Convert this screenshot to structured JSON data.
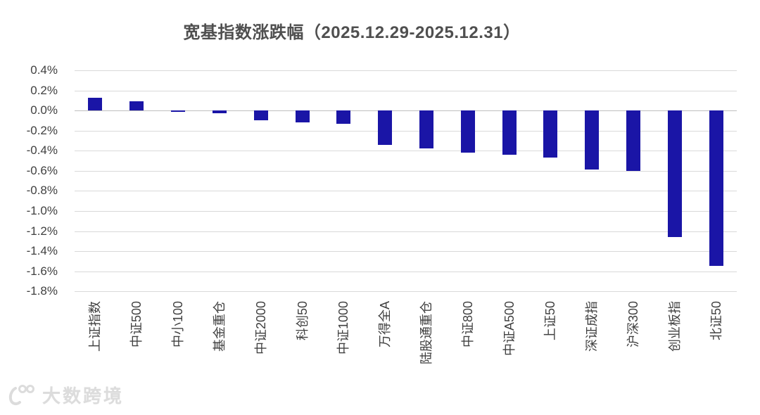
{
  "watermark": {
    "text": "大数跨境"
  },
  "chart_data": {
    "type": "bar",
    "title": "宽基指数涨跌幅（2025.12.29-2025.12.31）",
    "categories": [
      "上证指数",
      "中证500",
      "中小100",
      "基金重仓",
      "中证2000",
      "科创50",
      "中证1000",
      "万得全A",
      "陆股通重仓",
      "中证800",
      "中证A500",
      "上证50",
      "深证成指",
      "沪深300",
      "创业板指",
      "北证50"
    ],
    "values": [
      0.13,
      0.09,
      -0.01,
      -0.03,
      -0.1,
      -0.12,
      -0.13,
      -0.34,
      -0.38,
      -0.42,
      -0.44,
      -0.47,
      -0.59,
      -0.6,
      -1.26,
      -1.55
    ],
    "unit": "%",
    "xlabel": "",
    "ylabel": "",
    "ylim": [
      -1.8,
      0.4
    ],
    "ytick_step": 0.2,
    "ytick_labels": [
      "0.4%",
      "0.2%",
      "0.0%",
      "-0.2%",
      "-0.4%",
      "-0.6%",
      "-0.8%",
      "-1.0%",
      "-1.2%",
      "-1.4%",
      "-1.6%",
      "-1.8%"
    ],
    "bar_color": "#1A15A6",
    "gridline_color": "#D9D9D9",
    "zero_axis_color": "#BFBFBF",
    "grid": true,
    "legend_position": "none"
  }
}
